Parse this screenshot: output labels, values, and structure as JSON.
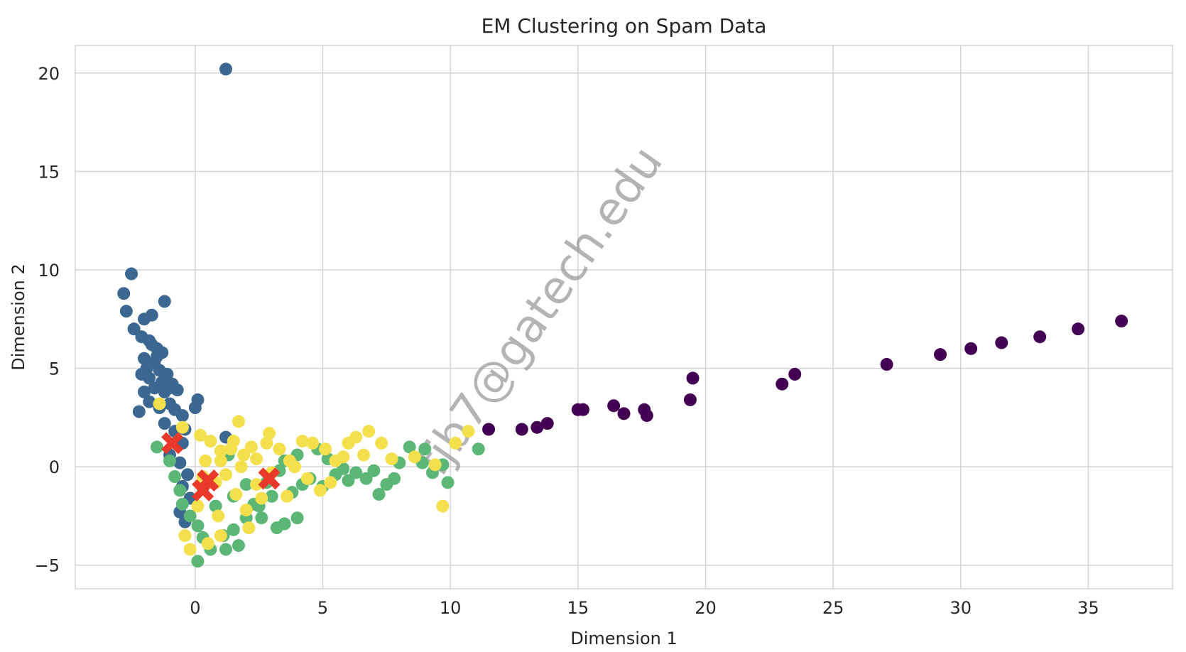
{
  "chart_data": {
    "type": "scatter",
    "title": "EM Clustering on Spam Data",
    "xlabel": "Dimension 1",
    "ylabel": "Dimension 2",
    "xlim": [
      -4.7,
      38.3
    ],
    "ylim": [
      -6.2,
      21.4
    ],
    "xticks": [
      0,
      5,
      10,
      15,
      20,
      25,
      30,
      35
    ],
    "yticks": [
      -5,
      0,
      5,
      10,
      15,
      20
    ],
    "grid": true,
    "watermark": "fjb7@gatech.edu",
    "colors": {
      "cluster_0": "#440154",
      "cluster_1": "#3b6790",
      "cluster_2": "#5cb777",
      "cluster_3": "#f4e04d",
      "centroid": "#e8392b",
      "grid": "#d4d4d4",
      "background": "#ffffff"
    },
    "series": [
      {
        "color": "#440154",
        "points": [
          [
            11.5,
            1.9
          ],
          [
            12.8,
            1.9
          ],
          [
            13.4,
            2.0
          ],
          [
            13.8,
            2.2
          ],
          [
            15.0,
            2.9
          ],
          [
            15.2,
            2.9
          ],
          [
            16.4,
            3.1
          ],
          [
            16.8,
            2.7
          ],
          [
            17.6,
            2.9
          ],
          [
            17.7,
            2.6
          ],
          [
            19.4,
            3.4
          ],
          [
            19.5,
            4.5
          ],
          [
            23.0,
            4.2
          ],
          [
            23.5,
            4.7
          ],
          [
            27.1,
            5.2
          ],
          [
            29.2,
            5.7
          ],
          [
            30.4,
            6.0
          ],
          [
            31.6,
            6.3
          ],
          [
            33.1,
            6.6
          ],
          [
            34.6,
            7.0
          ],
          [
            36.3,
            7.4
          ]
        ]
      },
      {
        "color": "#3b6790",
        "points": [
          [
            1.2,
            20.2
          ],
          [
            -2.8,
            8.8
          ],
          [
            -2.5,
            9.8
          ],
          [
            -2.7,
            7.9
          ],
          [
            -1.2,
            8.4
          ],
          [
            -1.7,
            7.7
          ],
          [
            -2.0,
            7.5
          ],
          [
            -2.4,
            7.0
          ],
          [
            -2.1,
            6.6
          ],
          [
            -1.8,
            6.4
          ],
          [
            -1.5,
            6.0
          ],
          [
            -1.3,
            5.8
          ],
          [
            -2.0,
            5.5
          ],
          [
            -1.6,
            5.3
          ],
          [
            -1.9,
            5.0
          ],
          [
            -1.4,
            4.9
          ],
          [
            -1.1,
            4.7
          ],
          [
            -1.8,
            4.5
          ],
          [
            -1.3,
            4.3
          ],
          [
            -0.9,
            4.2
          ],
          [
            -1.6,
            4.0
          ],
          [
            -1.2,
            3.8
          ],
          [
            -0.7,
            3.9
          ],
          [
            -2.0,
            3.8
          ],
          [
            -1.8,
            3.3
          ],
          [
            -2.2,
            2.8
          ],
          [
            -1.4,
            3.0
          ],
          [
            -1.0,
            3.2
          ],
          [
            0.1,
            3.4
          ],
          [
            0.0,
            3.0
          ],
          [
            -0.5,
            2.6
          ],
          [
            -1.2,
            2.2
          ],
          [
            -0.8,
            1.8
          ],
          [
            1.2,
            1.5
          ],
          [
            -0.5,
            1.2
          ],
          [
            -1.0,
            0.6
          ],
          [
            -0.6,
            0.2
          ],
          [
            -0.3,
            -0.4
          ],
          [
            -0.5,
            -1.0
          ],
          [
            -0.2,
            -1.6
          ],
          [
            -0.6,
            -2.3
          ],
          [
            -0.4,
            -2.8
          ],
          [
            -1.7,
            6.2
          ],
          [
            -1.5,
            5.6
          ],
          [
            -2.1,
            4.7
          ],
          [
            -1.0,
            4.0
          ],
          [
            -0.8,
            2.9
          ],
          [
            -0.4,
            1.9
          ]
        ]
      },
      {
        "color": "#5cb777",
        "points": [
          [
            -1.5,
            1.0
          ],
          [
            -1.0,
            0.3
          ],
          [
            -0.8,
            -0.5
          ],
          [
            -0.6,
            -1.2
          ],
          [
            -0.5,
            -1.9
          ],
          [
            -0.2,
            -2.5
          ],
          [
            0.1,
            -3.0
          ],
          [
            0.3,
            -3.6
          ],
          [
            0.6,
            -4.2
          ],
          [
            0.1,
            -4.8
          ],
          [
            1.2,
            -4.2
          ],
          [
            1.7,
            -4.0
          ],
          [
            1.5,
            -3.2
          ],
          [
            2.0,
            -2.6
          ],
          [
            2.6,
            -2.6
          ],
          [
            3.2,
            -3.1
          ],
          [
            3.5,
            -2.9
          ],
          [
            4.0,
            -2.6
          ],
          [
            2.3,
            -1.9
          ],
          [
            3.0,
            -1.5
          ],
          [
            3.8,
            -1.3
          ],
          [
            4.5,
            -0.6
          ],
          [
            5.0,
            -1.0
          ],
          [
            5.5,
            -0.4
          ],
          [
            6.0,
            -0.7
          ],
          [
            6.3,
            -0.3
          ],
          [
            6.7,
            -0.6
          ],
          [
            7.0,
            -0.2
          ],
          [
            7.2,
            -1.4
          ],
          [
            7.5,
            -0.9
          ],
          [
            7.8,
            -0.6
          ],
          [
            8.0,
            0.2
          ],
          [
            8.4,
            1.0
          ],
          [
            8.9,
            0.2
          ],
          [
            9.0,
            0.9
          ],
          [
            9.3,
            -0.3
          ],
          [
            9.7,
            0.1
          ],
          [
            9.9,
            -0.8
          ],
          [
            11.1,
            0.9
          ],
          [
            4.0,
            0.6
          ],
          [
            3.5,
            0.3
          ],
          [
            2.0,
            -0.9
          ],
          [
            1.5,
            -1.5
          ],
          [
            0.8,
            -2.0
          ],
          [
            1.1,
            -3.5
          ],
          [
            2.5,
            -2.0
          ],
          [
            4.8,
            0.9
          ],
          [
            5.8,
            -0.1
          ],
          [
            0.3,
            -1.1
          ],
          [
            1.3,
            0.6
          ],
          [
            2.8,
            -0.8
          ],
          [
            3.3,
            -0.2
          ],
          [
            4.2,
            -0.9
          ],
          [
            5.2,
            0.4
          ]
        ]
      },
      {
        "color": "#f4e04d",
        "points": [
          [
            -1.4,
            3.2
          ],
          [
            -0.5,
            2.0
          ],
          [
            0.2,
            1.6
          ],
          [
            0.6,
            1.3
          ],
          [
            1.0,
            0.8
          ],
          [
            1.7,
            2.3
          ],
          [
            1.5,
            1.3
          ],
          [
            2.2,
            1.0
          ],
          [
            2.8,
            1.2
          ],
          [
            3.3,
            0.9
          ],
          [
            2.4,
            0.4
          ],
          [
            1.8,
            0.0
          ],
          [
            1.2,
            -0.4
          ],
          [
            0.8,
            -0.8
          ],
          [
            0.3,
            -0.5
          ],
          [
            1.6,
            -1.4
          ],
          [
            2.0,
            -2.2
          ],
          [
            2.1,
            -3.1
          ],
          [
            1.0,
            -3.5
          ],
          [
            0.5,
            -3.9
          ],
          [
            -0.2,
            -4.2
          ],
          [
            -0.4,
            -3.5
          ],
          [
            2.4,
            -0.9
          ],
          [
            3.0,
            -0.3
          ],
          [
            3.7,
            0.3
          ],
          [
            4.2,
            1.3
          ],
          [
            4.6,
            1.2
          ],
          [
            5.1,
            0.9
          ],
          [
            5.5,
            0.3
          ],
          [
            6.0,
            1.2
          ],
          [
            6.3,
            1.5
          ],
          [
            6.8,
            1.8
          ],
          [
            7.3,
            1.2
          ],
          [
            6.6,
            0.6
          ],
          [
            5.3,
            -0.8
          ],
          [
            4.9,
            -1.2
          ],
          [
            4.4,
            -0.6
          ],
          [
            3.6,
            -1.5
          ],
          [
            2.6,
            -1.6
          ],
          [
            0.9,
            -2.5
          ],
          [
            0.1,
            -2.0
          ],
          [
            0.4,
            0.3
          ],
          [
            1.0,
            0.3
          ],
          [
            1.9,
            0.6
          ],
          [
            3.9,
            0.0
          ],
          [
            5.8,
            0.5
          ],
          [
            7.7,
            0.4
          ],
          [
            10.2,
            1.2
          ],
          [
            10.7,
            1.8
          ],
          [
            9.7,
            -2.0
          ],
          [
            9.4,
            0.1
          ],
          [
            8.6,
            0.5
          ],
          [
            2.9,
            1.7
          ],
          [
            1.4,
            0.9
          ]
        ]
      }
    ],
    "centroids": [
      [
        -0.9,
        1.2
      ],
      [
        0.5,
        -0.7
      ],
      [
        0.3,
        -1.2
      ],
      [
        2.9,
        -0.6
      ]
    ]
  }
}
